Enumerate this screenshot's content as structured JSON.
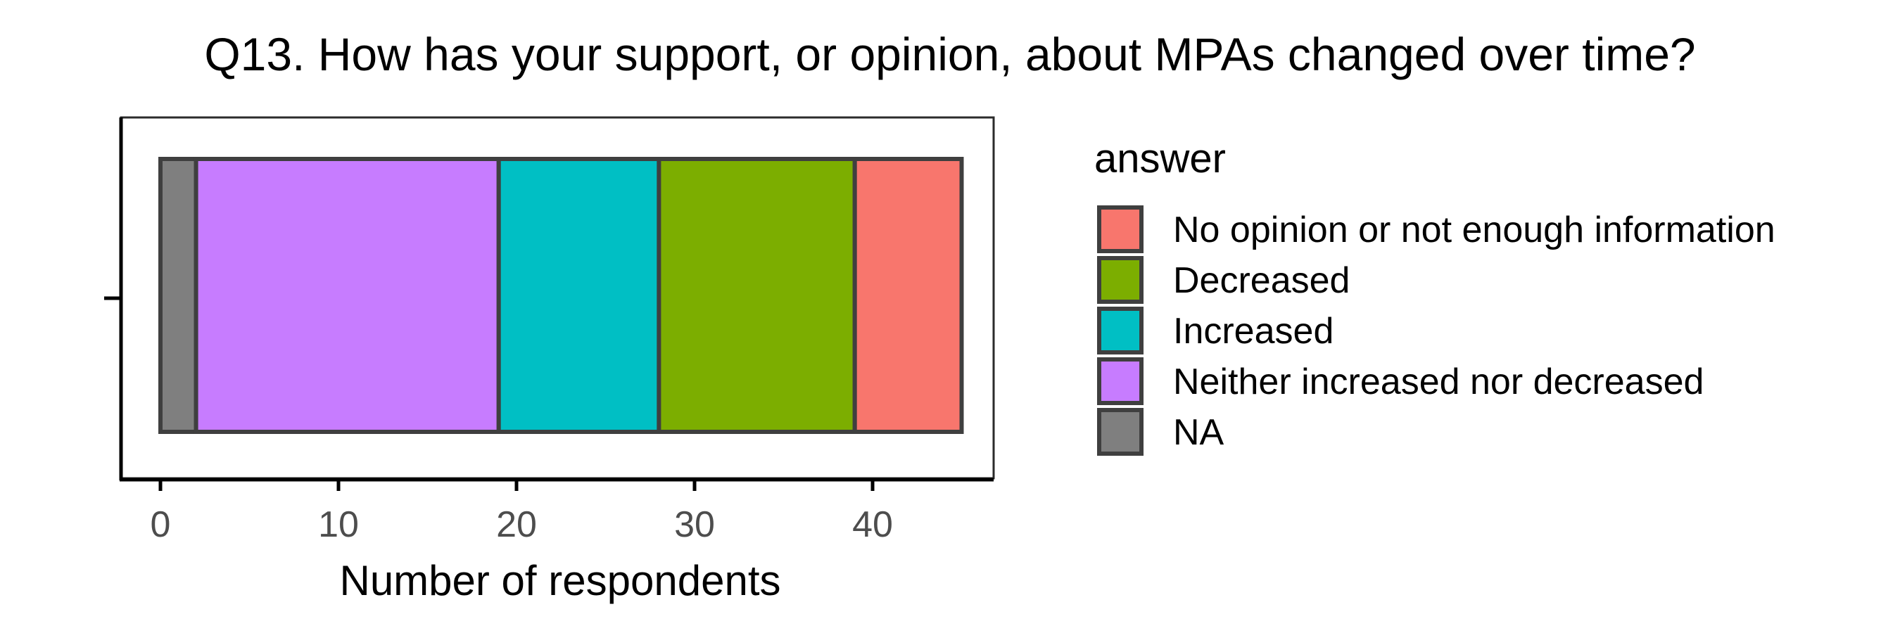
{
  "chart_data": {
    "type": "bar",
    "orientation": "horizontal",
    "stacked": true,
    "title": "Q13. How has your support, or opinion, about MPAs changed over time?",
    "xlabel": "Number of respondents",
    "ylabel": "",
    "xlim": [
      0,
      47.2
    ],
    "xticks": [
      0,
      10,
      20,
      30,
      40
    ],
    "xtick_labels": [
      "0",
      "10",
      "20",
      "30",
      "40"
    ],
    "categories": [
      ""
    ],
    "grid": false,
    "legend_position": "right",
    "legend_title": "answer",
    "stack_order": [
      "NA",
      "Neither increased nor decreased",
      "Increased",
      "Decreased",
      "No opinion or not enough information"
    ],
    "series": [
      {
        "name": "No opinion or not enough information",
        "values": [
          6
        ],
        "color": "#F8766D"
      },
      {
        "name": "Decreased",
        "values": [
          11
        ],
        "color": "#7CAE00"
      },
      {
        "name": "Increased",
        "values": [
          9
        ],
        "color": "#00BFC4"
      },
      {
        "name": "Neither increased nor decreased",
        "values": [
          17
        ],
        "color": "#C77CFF"
      },
      {
        "name": "NA",
        "values": [
          2
        ],
        "color": "#7F7F7F"
      }
    ],
    "segment_outline_color": "#3f3f3f"
  }
}
